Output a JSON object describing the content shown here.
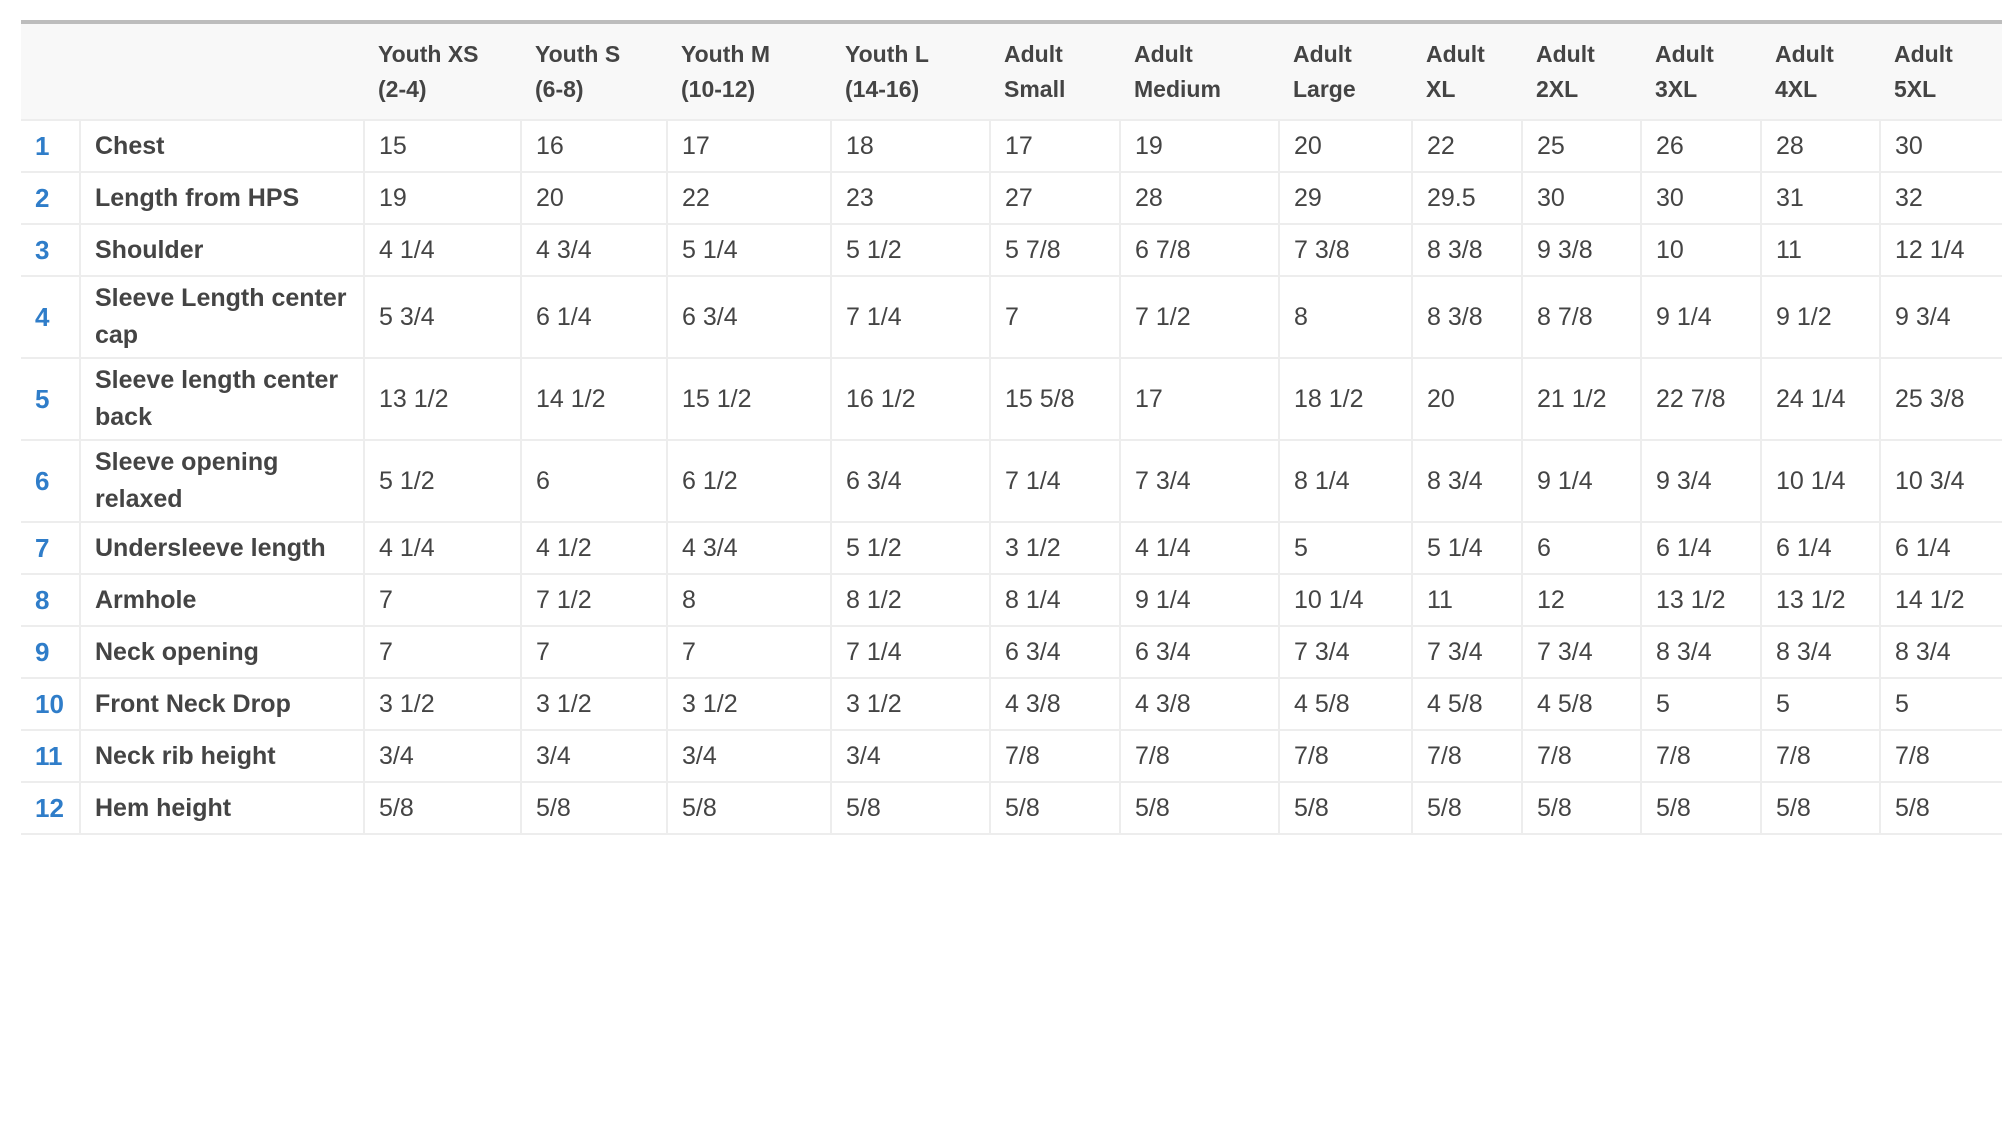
{
  "size_table": {
    "header_lines": [
      [
        "",
        ""
      ],
      [
        "",
        ""
      ],
      [
        "Youth XS",
        "(2-4)"
      ],
      [
        "Youth S",
        "(6-8)"
      ],
      [
        "Youth M",
        "(10-12)"
      ],
      [
        "Youth L",
        "(14-16)"
      ],
      [
        "Adult",
        "Small"
      ],
      [
        "Adult",
        "Medium"
      ],
      [
        "Adult",
        "Large"
      ],
      [
        "Adult",
        "XL"
      ],
      [
        "Adult",
        "2XL"
      ],
      [
        "Adult",
        "3XL"
      ],
      [
        "Adult",
        "4XL"
      ],
      [
        "Adult",
        "5XL"
      ]
    ],
    "rows": [
      {
        "num": "1",
        "label": "Chest",
        "values": [
          "15",
          "16",
          "17",
          "18",
          "17",
          "19",
          "20",
          "22",
          "25",
          "26",
          "28",
          "30"
        ]
      },
      {
        "num": "2",
        "label": "Length from HPS",
        "values": [
          "19",
          "20",
          "22",
          "23",
          "27",
          "28",
          "29",
          "29.5",
          "30",
          "30",
          "31",
          "32"
        ]
      },
      {
        "num": "3",
        "label": "Shoulder",
        "values": [
          "4 1/4",
          "4 3/4",
          "5 1/4",
          "5 1/2",
          "5 7/8",
          "6 7/8",
          "7 3/8",
          "8 3/8",
          "9 3/8",
          "10",
          "11",
          "12 1/4"
        ]
      },
      {
        "num": "4",
        "label": "Sleeve Length center cap",
        "values": [
          "5 3/4",
          "6 1/4",
          "6 3/4",
          "7 1/4",
          "7",
          "7 1/2",
          "8",
          "8 3/8",
          "8 7/8",
          "9 1/4",
          "9 1/2",
          "9 3/4"
        ]
      },
      {
        "num": "5",
        "label": "Sleeve length center back",
        "values": [
          "13 1/2",
          "14 1/2",
          "15 1/2",
          "16 1/2",
          "15 5/8",
          "17",
          "18 1/2",
          "20",
          "21 1/2",
          "22 7/8",
          "24 1/4",
          "25 3/8"
        ]
      },
      {
        "num": "6",
        "label": "Sleeve opening relaxed",
        "values": [
          "5 1/2",
          "6",
          "6 1/2",
          "6 3/4",
          "7 1/4",
          "7 3/4",
          "8 1/4",
          "8 3/4",
          "9 1/4",
          "9 3/4",
          "10 1/4",
          "10 3/4"
        ]
      },
      {
        "num": "7",
        "label": "Undersleeve length",
        "values": [
          "4 1/4",
          "4 1/2",
          "4 3/4",
          "5 1/2",
          "3 1/2",
          "4 1/4",
          "5",
          "5 1/4",
          "6",
          "6 1/4",
          "6 1/4",
          "6 1/4"
        ]
      },
      {
        "num": "8",
        "label": "Armhole",
        "values": [
          "7",
          "7 1/2",
          "8",
          "8 1/2",
          "8 1/4",
          "9 1/4",
          "10 1/4",
          "11",
          "12",
          "13 1/2",
          "13 1/2",
          "14 1/2"
        ]
      },
      {
        "num": "9",
        "label": "Neck opening",
        "values": [
          "7",
          "7",
          "7",
          "7 1/4",
          "6 3/4",
          "6 3/4",
          "7 3/4",
          "7 3/4",
          "7 3/4",
          "8 3/4",
          "8 3/4",
          "8 3/4"
        ]
      },
      {
        "num": "10",
        "label": "Front Neck Drop",
        "values": [
          "3 1/2",
          "3 1/2",
          "3 1/2",
          "3 1/2",
          "4 3/8",
          "4 3/8",
          "4 5/8",
          "4 5/8",
          "4 5/8",
          "5",
          "5",
          "5"
        ]
      },
      {
        "num": "11",
        "label": "Neck rib height",
        "values": [
          "3/4",
          "3/4",
          "3/4",
          "3/4",
          "7/8",
          "7/8",
          "7/8",
          "7/8",
          "7/8",
          "7/8",
          "7/8",
          "7/8"
        ]
      },
      {
        "num": "12",
        "label": "Hem height",
        "values": [
          "5/8",
          "5/8",
          "5/8",
          "5/8",
          "5/8",
          "5/8",
          "5/8",
          "5/8",
          "5/8",
          "5/8",
          "5/8",
          "5/8"
        ]
      }
    ]
  },
  "colors": {
    "row_number": "#2f7dc9",
    "text": "#444444",
    "header_bg": "#f8f8f8",
    "top_border": "#bdbdbd",
    "grid_line": "#ededed"
  }
}
